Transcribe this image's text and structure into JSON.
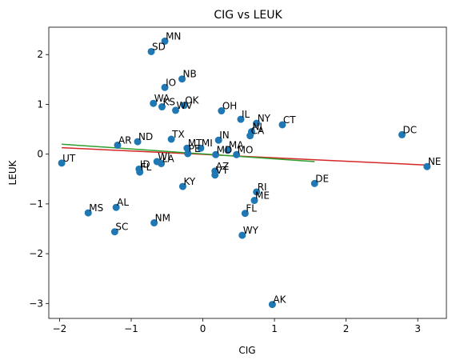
{
  "chart_data": {
    "type": "scatter",
    "title": "CIG vs LEUK",
    "xlabel": "CIG",
    "ylabel": "LEUK",
    "xlim": [
      -2.15,
      3.4
    ],
    "ylim": [
      -3.3,
      2.55
    ],
    "xticks": [
      -2,
      -1,
      0,
      1,
      2,
      3
    ],
    "yticks": [
      -3,
      -2,
      -1,
      0,
      1,
      2
    ],
    "xtick_labels": [
      "−2",
      "−1",
      "0",
      "1",
      "2",
      "3"
    ],
    "ytick_labels": [
      "−3",
      "−2",
      "−1",
      "0",
      "1",
      "2"
    ],
    "grid": false,
    "marker_color": "#1f77b4",
    "points": [
      {
        "label": "MN",
        "x": -0.53,
        "y": 2.27
      },
      {
        "label": "SD",
        "x": -0.72,
        "y": 2.06
      },
      {
        "label": "NB",
        "x": -0.29,
        "y": 1.51
      },
      {
        "label": "IO",
        "x": -0.53,
        "y": 1.34
      },
      {
        "label": "WA",
        "x": -0.69,
        "y": 1.02
      },
      {
        "label": "KS",
        "x": -0.57,
        "y": 0.95
      },
      {
        "label": "OK",
        "x": -0.26,
        "y": 0.98
      },
      {
        "label": "WV",
        "x": -0.38,
        "y": 0.88
      },
      {
        "label": "OH",
        "x": 0.26,
        "y": 0.87
      },
      {
        "label": "IL",
        "x": 0.53,
        "y": 0.7
      },
      {
        "label": "NY",
        "x": 0.75,
        "y": 0.62
      },
      {
        "label": "CT",
        "x": 1.11,
        "y": 0.59
      },
      {
        "label": "NJ",
        "x": 0.68,
        "y": 0.45
      },
      {
        "label": "CA",
        "x": 0.66,
        "y": 0.37
      },
      {
        "label": "DC",
        "x": 2.78,
        "y": 0.39
      },
      {
        "label": "NE",
        "x": 3.13,
        "y": -0.25
      },
      {
        "label": "TX",
        "x": -0.44,
        "y": 0.3
      },
      {
        "label": "IN",
        "x": 0.22,
        "y": 0.28
      },
      {
        "label": "ND",
        "x": -0.91,
        "y": 0.25
      },
      {
        "label": "AR",
        "x": -1.19,
        "y": 0.18
      },
      {
        "label": "MT",
        "x": -0.22,
        "y": 0.12
      },
      {
        "label": "MI",
        "x": -0.03,
        "y": 0.12
      },
      {
        "label": "MA",
        "x": 0.35,
        "y": 0.08
      },
      {
        "label": "MD",
        "x": 0.18,
        "y": -0.01
      },
      {
        "label": "MO",
        "x": 0.47,
        "y": -0.01
      },
      {
        "label": "PE",
        "x": -0.21,
        "y": 0.01
      },
      {
        "label": "UT",
        "x": -1.97,
        "y": -0.18
      },
      {
        "label": "WI",
        "x": -0.64,
        "y": -0.15
      },
      {
        "label": "LA",
        "x": -0.58,
        "y": -0.19
      },
      {
        "label": "ID",
        "x": -0.89,
        "y": -0.3
      },
      {
        "label": "FL",
        "x": -0.88,
        "y": -0.36
      },
      {
        "label": "AZ",
        "x": 0.17,
        "y": -0.34
      },
      {
        "label": "VT",
        "x": 0.17,
        "y": -0.42
      },
      {
        "label": "KY",
        "x": -0.28,
        "y": -0.65
      },
      {
        "label": "DE",
        "x": 1.56,
        "y": -0.59
      },
      {
        "label": "RI",
        "x": 0.75,
        "y": -0.76
      },
      {
        "label": "ME",
        "x": 0.72,
        "y": -0.93
      },
      {
        "label": "AL",
        "x": -1.21,
        "y": -1.07
      },
      {
        "label": "MS",
        "x": -1.6,
        "y": -1.18
      },
      {
        "label": "FL",
        "x": 0.59,
        "y": -1.19
      },
      {
        "label": "NM",
        "x": -0.68,
        "y": -1.38
      },
      {
        "label": "SC",
        "x": -1.23,
        "y": -1.56
      },
      {
        "label": "WY",
        "x": 0.55,
        "y": -1.63
      },
      {
        "label": "AK",
        "x": 0.97,
        "y": -3.02
      }
    ],
    "lines": [
      {
        "color": "#d62728",
        "x": [
          -1.97,
          3.13
        ],
        "y": [
          0.13,
          -0.22
        ]
      },
      {
        "color": "#2ca02c",
        "x": [
          -1.97,
          1.56
        ],
        "y": [
          0.2,
          -0.15
        ]
      }
    ]
  }
}
